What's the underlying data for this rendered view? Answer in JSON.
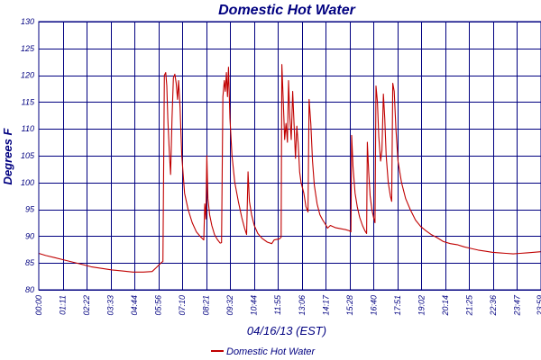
{
  "chart_data": {
    "type": "line",
    "title": "Domestic Hot Water",
    "xlabel": "04/16/13 (EST)",
    "ylabel": "Degrees F",
    "ylim": [
      80,
      130
    ],
    "xlim": [
      0,
      1440
    ],
    "yticks": [
      80,
      85,
      90,
      95,
      100,
      105,
      110,
      115,
      120,
      125,
      130
    ],
    "xtick_labels": [
      "00:00",
      "01:11",
      "02:22",
      "03:33",
      "04:44",
      "05:56",
      "07:10",
      "08:21",
      "09:32",
      "10:44",
      "11:55",
      "13:06",
      "14:17",
      "15:28",
      "16:40",
      "17:51",
      "19:02",
      "20:14",
      "21:25",
      "22:36",
      "23:47",
      "23:59"
    ],
    "grid": true,
    "legend_position": "bottom-center",
    "series": [
      {
        "name": "Domestic Hot Water",
        "color": "#c00000",
        "points": [
          [
            0,
            86.8
          ],
          [
            20,
            86.4
          ],
          [
            45,
            86.0
          ],
          [
            70,
            85.6
          ],
          [
            95,
            85.2
          ],
          [
            120,
            84.8
          ],
          [
            150,
            84.3
          ],
          [
            180,
            84.0
          ],
          [
            210,
            83.7
          ],
          [
            240,
            83.5
          ],
          [
            270,
            83.3
          ],
          [
            300,
            83.3
          ],
          [
            325,
            83.4
          ],
          [
            338,
            84.2
          ],
          [
            350,
            85.0
          ],
          [
            356,
            85.3
          ],
          [
            360,
            120.0
          ],
          [
            364,
            120.5
          ],
          [
            367,
            118.0
          ],
          [
            370,
            112.0
          ],
          [
            374,
            106.0
          ],
          [
            378,
            101.5
          ],
          [
            382,
            112.0
          ],
          [
            386,
            119.5
          ],
          [
            390,
            120.2
          ],
          [
            394,
            118.5
          ],
          [
            398,
            115.5
          ],
          [
            401,
            119.0
          ],
          [
            405,
            114.0
          ],
          [
            410,
            105.0
          ],
          [
            418,
            98.0
          ],
          [
            428,
            95.0
          ],
          [
            440,
            92.5
          ],
          [
            452,
            90.8
          ],
          [
            465,
            89.8
          ],
          [
            473,
            89.3
          ],
          [
            476,
            96.0
          ],
          [
            479,
            93.2
          ],
          [
            482,
            105.0
          ],
          [
            485,
            97.0
          ],
          [
            490,
            94.0
          ],
          [
            496,
            92.0
          ],
          [
            504,
            90.3
          ],
          [
            512,
            89.4
          ],
          [
            520,
            88.7
          ],
          [
            524,
            88.8
          ],
          [
            528,
            116.0
          ],
          [
            532,
            119.0
          ],
          [
            535,
            117.0
          ],
          [
            538,
            120.5
          ],
          [
            541,
            116.0
          ],
          [
            544,
            121.5
          ],
          [
            548,
            112.0
          ],
          [
            554,
            105.0
          ],
          [
            562,
            100.0
          ],
          [
            572,
            96.5
          ],
          [
            582,
            93.5
          ],
          [
            590,
            91.5
          ],
          [
            596,
            90.3
          ],
          [
            600,
            102.0
          ],
          [
            604,
            96.5
          ],
          [
            610,
            94.0
          ],
          [
            618,
            92.0
          ],
          [
            628,
            90.5
          ],
          [
            640,
            89.6
          ],
          [
            655,
            88.9
          ],
          [
            668,
            88.6
          ],
          [
            675,
            89.3
          ],
          [
            690,
            89.5
          ],
          [
            695,
            89.8
          ],
          [
            697,
            122.0
          ],
          [
            701,
            115.0
          ],
          [
            705,
            108.0
          ],
          [
            709,
            111.0
          ],
          [
            713,
            107.5
          ],
          [
            716,
            119.0
          ],
          [
            720,
            112.0
          ],
          [
            724,
            108.0
          ],
          [
            728,
            117.0
          ],
          [
            732,
            111.0
          ],
          [
            736,
            104.5
          ],
          [
            740,
            110.5
          ],
          [
            744,
            107.0
          ],
          [
            748,
            102.0
          ],
          [
            752,
            100.0
          ],
          [
            760,
            98.0
          ],
          [
            766,
            95.5
          ],
          [
            772,
            94.5
          ],
          [
            775,
            115.5
          ],
          [
            780,
            111.0
          ],
          [
            785,
            104.0
          ],
          [
            790,
            99.5
          ],
          [
            798,
            96.0
          ],
          [
            806,
            94.0
          ],
          [
            814,
            93.0
          ],
          [
            822,
            92.2
          ],
          [
            828,
            91.5
          ],
          [
            836,
            92.0
          ],
          [
            850,
            91.6
          ],
          [
            865,
            91.4
          ],
          [
            880,
            91.2
          ],
          [
            890,
            91.0
          ],
          [
            895,
            90.8
          ],
          [
            897,
            108.8
          ],
          [
            901,
            103.0
          ],
          [
            907,
            98.0
          ],
          [
            913,
            95.5
          ],
          [
            920,
            93.5
          ],
          [
            928,
            92.0
          ],
          [
            935,
            91.0
          ],
          [
            940,
            90.5
          ],
          [
            942,
            107.5
          ],
          [
            946,
            102.0
          ],
          [
            950,
            97.5
          ],
          [
            955,
            95.0
          ],
          [
            960,
            93.5
          ],
          [
            964,
            92.5
          ],
          [
            967,
            118.0
          ],
          [
            971,
            115.0
          ],
          [
            975,
            108.5
          ],
          [
            980,
            104.0
          ],
          [
            984,
            106.0
          ],
          [
            988,
            116.5
          ],
          [
            992,
            112.0
          ],
          [
            996,
            105.0
          ],
          [
            1002,
            100.0
          ],
          [
            1008,
            97.5
          ],
          [
            1012,
            96.5
          ],
          [
            1015,
            118.5
          ],
          [
            1019,
            117.0
          ],
          [
            1024,
            110.0
          ],
          [
            1030,
            104.0
          ],
          [
            1040,
            100.0
          ],
          [
            1052,
            97.0
          ],
          [
            1065,
            95.0
          ],
          [
            1080,
            93.0
          ],
          [
            1095,
            91.8
          ],
          [
            1110,
            91.0
          ],
          [
            1125,
            90.3
          ],
          [
            1140,
            89.8
          ],
          [
            1160,
            89.0
          ],
          [
            1180,
            88.6
          ],
          [
            1200,
            88.4
          ],
          [
            1220,
            88.0
          ],
          [
            1240,
            87.7
          ],
          [
            1260,
            87.4
          ],
          [
            1280,
            87.2
          ],
          [
            1300,
            87.0
          ],
          [
            1320,
            86.9
          ],
          [
            1340,
            86.8
          ],
          [
            1360,
            86.7
          ],
          [
            1380,
            86.8
          ],
          [
            1400,
            86.9
          ],
          [
            1420,
            87.0
          ],
          [
            1439,
            87.1
          ]
        ]
      }
    ]
  }
}
